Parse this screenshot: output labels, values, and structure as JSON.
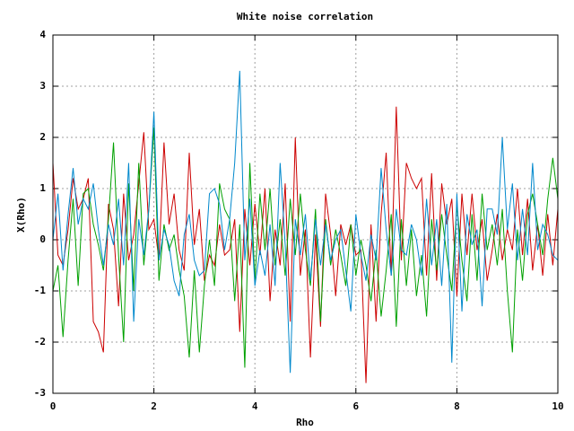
{
  "chart_data": {
    "type": "line",
    "title": "White noise correlation",
    "x_label": "Rho",
    "y_label": "X(Rho)",
    "x": [
      0,
      0.1,
      0.2,
      0.3,
      0.4,
      0.5,
      0.6,
      0.7,
      0.8,
      0.9,
      1,
      1.1,
      1.2,
      1.3,
      1.4,
      1.5,
      1.6,
      1.7,
      1.8,
      1.9,
      2,
      2.1,
      2.2,
      2.3,
      2.4,
      2.5,
      2.6,
      2.7,
      2.8,
      2.9,
      3,
      3.1,
      3.2,
      3.3,
      3.4,
      3.5,
      3.6,
      3.7,
      3.8,
      3.9,
      4,
      4.1,
      4.2,
      4.3,
      4.4,
      4.5,
      4.6,
      4.7,
      4.8,
      4.9,
      5,
      5.1,
      5.2,
      5.3,
      5.4,
      5.5,
      5.6,
      5.7,
      5.8,
      5.9,
      6,
      6.1,
      6.2,
      6.3,
      6.4,
      6.5,
      6.6,
      6.7,
      6.8,
      6.9,
      7,
      7.1,
      7.2,
      7.3,
      7.4,
      7.5,
      7.6,
      7.7,
      7.8,
      7.9,
      8,
      8.1,
      8.2,
      8.3,
      8.4,
      8.5,
      8.6,
      8.7,
      8.8,
      8.9,
      9,
      9.1,
      9.2,
      9.3,
      9.4,
      9.5,
      9.6,
      9.7,
      9.8,
      9.9,
      10
    ],
    "series": [
      {
        "color": "#cc0000",
        "values": [
          1.5,
          -0.3,
          -0.5,
          0.2,
          1.2,
          0.6,
          0.8,
          1.2,
          -1.6,
          -1.8,
          -2.2,
          0.7,
          0.2,
          -1.3,
          0.9,
          -0.4,
          0.1,
          1.1,
          2.1,
          0.2,
          0.4,
          -0.4,
          1.9,
          0.3,
          0.9,
          -0.2,
          -0.6,
          1.7,
          -0.1,
          0.6,
          -0.8,
          -0.3,
          -0.5,
          0.3,
          -0.3,
          -0.2,
          0.4,
          -1.8,
          0.6,
          -0.5,
          0.7,
          -0.3,
          1.0,
          -1.2,
          0.2,
          -0.5,
          1.1,
          -1.6,
          2.0,
          -0.7,
          0.2,
          -2.3,
          0.1,
          -1.7,
          0.9,
          0.1,
          -1.1,
          0.3,
          -0.1,
          0.3,
          -0.3,
          -0.2,
          -2.8,
          0.3,
          -1.6,
          0.5,
          1.7,
          -0.7,
          2.6,
          -0.4,
          1.5,
          1.2,
          1.0,
          1.2,
          -0.7,
          1.3,
          -0.8,
          1.1,
          0.3,
          0.8,
          -1.1,
          0.9,
          -0.3,
          0.9,
          -0.2,
          0.4,
          -0.8,
          -0.2,
          0.5,
          -0.4,
          0.2,
          -0.2,
          1.0,
          -0.3,
          0.8,
          -0.6,
          0.3,
          -0.7,
          0.5,
          -0.5,
          0.6
        ]
      },
      {
        "color": "#00a000",
        "values": [
          -1.0,
          -0.5,
          -1.9,
          -0.4,
          0.8,
          -0.9,
          0.9,
          1.0,
          0.3,
          -0.1,
          -0.6,
          0.4,
          1.9,
          -0.3,
          -2.0,
          1.1,
          -1.0,
          1.5,
          -0.5,
          0.6,
          2.2,
          -0.8,
          0.3,
          -0.2,
          0.1,
          -0.6,
          -1.1,
          -2.3,
          -0.6,
          -2.2,
          -0.9,
          0.0,
          -0.9,
          1.1,
          0.6,
          0.4,
          -1.2,
          0.3,
          -2.5,
          1.5,
          -0.8,
          0.9,
          -0.2,
          1.0,
          -0.5,
          0.4,
          -0.7,
          0.8,
          -0.3,
          0.9,
          -0.2,
          -0.9,
          0.6,
          -1.6,
          0.4,
          -0.5,
          0.2,
          -0.3,
          -0.9,
          0.3,
          -0.7,
          0.0,
          -0.5,
          -1.2,
          -0.2,
          -1.5,
          -0.6,
          0.5,
          -1.7,
          0.4,
          -0.9,
          0.2,
          -1.1,
          -0.3,
          -1.5,
          0.4,
          -0.6,
          0.5,
          -0.3,
          -1.0,
          0.7,
          -0.4,
          -1.2,
          0.5,
          -0.8,
          0.9,
          -0.2,
          0.3,
          -0.5,
          0.6,
          -1.0,
          -2.2,
          0.2,
          -0.8,
          0.5,
          0.9,
          0.3,
          -0.3,
          0.8,
          1.6,
          0.8
        ]
      },
      {
        "color": "#0088cc",
        "values": [
          0.0,
          0.9,
          -0.6,
          0.5,
          1.4,
          0.3,
          0.8,
          0.6,
          1.1,
          0.2,
          -0.5,
          0.3,
          -0.1,
          0.8,
          -0.5,
          1.5,
          -1.6,
          0.4,
          -0.3,
          0.6,
          2.5,
          -0.4,
          0.2,
          -0.1,
          -0.8,
          -1.1,
          0.1,
          0.5,
          -0.4,
          -0.7,
          -0.6,
          0.9,
          1.0,
          0.7,
          -0.2,
          0.4,
          1.5,
          3.3,
          -0.4,
          0.8,
          -0.9,
          -0.2,
          -0.7,
          0.3,
          -0.9,
          1.5,
          -0.1,
          -2.6,
          0.4,
          -0.3,
          0.5,
          -0.8,
          0.4,
          -0.5,
          0.3,
          -0.4,
          0.0,
          0.2,
          -0.6,
          -1.4,
          0.5,
          -0.3,
          -0.8,
          0.1,
          -0.4,
          1.4,
          0.2,
          -0.7,
          0.6,
          -0.2,
          -0.3,
          0.3,
          0.0,
          -0.7,
          0.8,
          -0.5,
          0.4,
          -0.9,
          0.7,
          -2.4,
          0.9,
          -1.4,
          0.5,
          -0.1,
          0.2,
          -1.3,
          0.6,
          0.6,
          0.1,
          2.0,
          0.2,
          1.1,
          -0.4,
          0.6,
          -0.3,
          1.5,
          -0.2,
          0.3,
          0.1,
          -0.3,
          -0.4
        ]
      }
    ],
    "xlim": [
      0,
      10
    ],
    "ylim": [
      -3,
      4
    ],
    "xticks": [
      0,
      2,
      4,
      6,
      8,
      10
    ],
    "yticks": [
      -3,
      -2,
      -1,
      0,
      1,
      2,
      3,
      4
    ],
    "grid": true
  }
}
